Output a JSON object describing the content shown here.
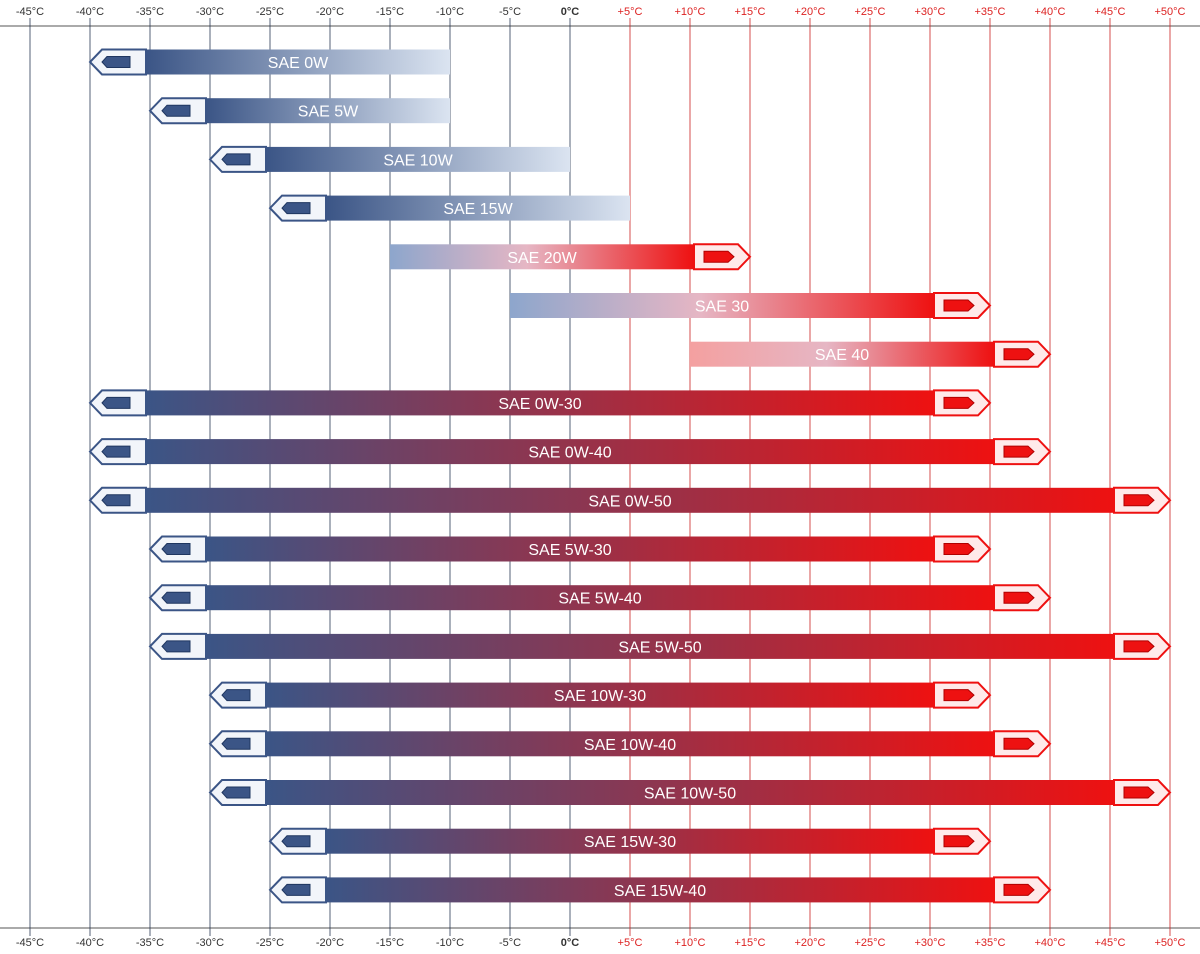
{
  "chart_data": {
    "type": "bar",
    "orientation": "horizontal-range",
    "xlim": [
      -47.5,
      52.5
    ],
    "ticks": [
      {
        "value": -45,
        "label": "-45°C"
      },
      {
        "value": -40,
        "label": "-40°C"
      },
      {
        "value": -35,
        "label": "-35°C"
      },
      {
        "value": -30,
        "label": "-30°C"
      },
      {
        "value": -25,
        "label": "-25°C"
      },
      {
        "value": -20,
        "label": "-20°C"
      },
      {
        "value": -15,
        "label": "-15°C"
      },
      {
        "value": -10,
        "label": "-10°C"
      },
      {
        "value": -5,
        "label": "-5°C"
      },
      {
        "value": 0,
        "label": "0°C"
      },
      {
        "value": 5,
        "label": "+5°C"
      },
      {
        "value": 10,
        "label": "+10°C"
      },
      {
        "value": 15,
        "label": "+15°C"
      },
      {
        "value": 20,
        "label": "+20°C"
      },
      {
        "value": 25,
        "label": "+25°C"
      },
      {
        "value": 30,
        "label": "+30°C"
      },
      {
        "value": 35,
        "label": "+35°C"
      },
      {
        "value": 40,
        "label": "+40°C"
      },
      {
        "value": 45,
        "label": "+45°C"
      },
      {
        "value": 50,
        "label": "+50°C"
      }
    ],
    "grid": true,
    "colors": {
      "cold": "#3b5586",
      "warm": "#ee1111",
      "cold_grid": "#2a3a55",
      "warm_grid": "#cc2222",
      "cold_text": "#333333",
      "warm_text": "#dd2222"
    },
    "grades": [
      {
        "label": "SAE 0W",
        "min": -40,
        "max": -10,
        "arrow_min": true,
        "arrow_max": false
      },
      {
        "label": "SAE 5W",
        "min": -35,
        "max": -10,
        "arrow_min": true,
        "arrow_max": false
      },
      {
        "label": "SAE 10W",
        "min": -30,
        "max": 0,
        "arrow_min": true,
        "arrow_max": false
      },
      {
        "label": "SAE 15W",
        "min": -25,
        "max": 5,
        "arrow_min": true,
        "arrow_max": false
      },
      {
        "label": "SAE 20W",
        "min": -15,
        "max": 15,
        "arrow_min": false,
        "arrow_max": true
      },
      {
        "label": "SAE 30",
        "min": -5,
        "max": 35,
        "arrow_min": false,
        "arrow_max": true
      },
      {
        "label": "SAE 40",
        "min": 10,
        "max": 40,
        "arrow_min": false,
        "arrow_max": true
      },
      {
        "label": "SAE 0W-30",
        "min": -40,
        "max": 35,
        "arrow_min": true,
        "arrow_max": true
      },
      {
        "label": "SAE 0W-40",
        "min": -40,
        "max": 40,
        "arrow_min": true,
        "arrow_max": true
      },
      {
        "label": "SAE 0W-50",
        "min": -40,
        "max": 50,
        "arrow_min": true,
        "arrow_max": true
      },
      {
        "label": "SAE 5W-30",
        "min": -35,
        "max": 35,
        "arrow_min": true,
        "arrow_max": true
      },
      {
        "label": "SAE 5W-40",
        "min": -35,
        "max": 40,
        "arrow_min": true,
        "arrow_max": true
      },
      {
        "label": "SAE 5W-50",
        "min": -35,
        "max": 50,
        "arrow_min": true,
        "arrow_max": true
      },
      {
        "label": "SAE 10W-30",
        "min": -30,
        "max": 35,
        "arrow_min": true,
        "arrow_max": true
      },
      {
        "label": "SAE 10W-40",
        "min": -30,
        "max": 40,
        "arrow_min": true,
        "arrow_max": true
      },
      {
        "label": "SAE 10W-50",
        "min": -30,
        "max": 50,
        "arrow_min": true,
        "arrow_max": true
      },
      {
        "label": "SAE 15W-30",
        "min": -25,
        "max": 35,
        "arrow_min": true,
        "arrow_max": true
      },
      {
        "label": "SAE 15W-40",
        "min": -25,
        "max": 40,
        "arrow_min": true,
        "arrow_max": true
      }
    ]
  }
}
